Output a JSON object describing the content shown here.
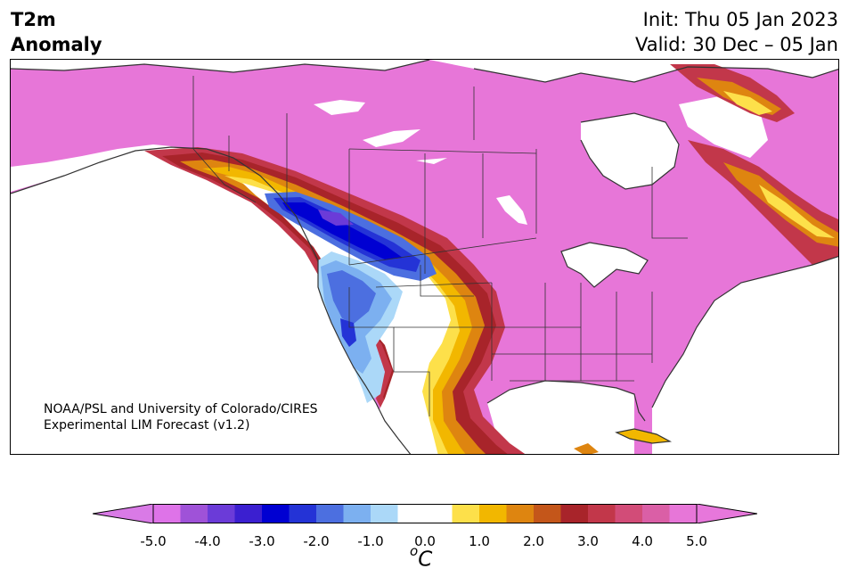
{
  "header": {
    "title_line1": "T2m",
    "title_line2": "Anomaly",
    "init": "Init: Thu 05 Jan 2023",
    "valid": "Valid: 30 Dec – 05 Jan"
  },
  "credit": {
    "line1": "NOAA/PSL and University of Colorado/CIRES",
    "line2": "Experimental LIM Forecast (v1.2)"
  },
  "colorbar": {
    "unit_base": "C",
    "unit_sup": "o",
    "ticks": [
      "-5.0",
      "-4.0",
      "-3.0",
      "-2.0",
      "-1.0",
      "0.0",
      "1.0",
      "2.0",
      "3.0",
      "4.0",
      "5.0"
    ],
    "colors": [
      "#de73e8",
      "#9f52d8",
      "#6b3bd8",
      "#3b1fd0",
      "#0000d2",
      "#2433d6",
      "#4c6fe0",
      "#7cb0f0",
      "#abd8f8",
      "#ffffff",
      "#ffffff",
      "#fde04a",
      "#f2b700",
      "#de8510",
      "#c4561a",
      "#a8242a",
      "#c2374a",
      "#d24c78",
      "#da5fa6",
      "#e776d8"
    ],
    "under_color": "#d97ae6",
    "over_color": "#e777db"
  },
  "map": {
    "land_color": "#e776d8",
    "water_color": "#ffffff",
    "anomaly_colors": {
      "strong_cold": "#0000d2",
      "cold": "#3b1fd0",
      "mid_cold": "#6b3bd8",
      "cool": "#4c6fe0",
      "light_cool": "#7cb0f0",
      "pale_cool": "#abd8f8",
      "neutral": "#ffffff",
      "yellow": "#fde04a",
      "gold": "#f2b700",
      "orange": "#de8510",
      "dark_orange": "#c4561a",
      "red": "#a8242a",
      "rose": "#c2374a",
      "pink": "#d24c78"
    }
  }
}
